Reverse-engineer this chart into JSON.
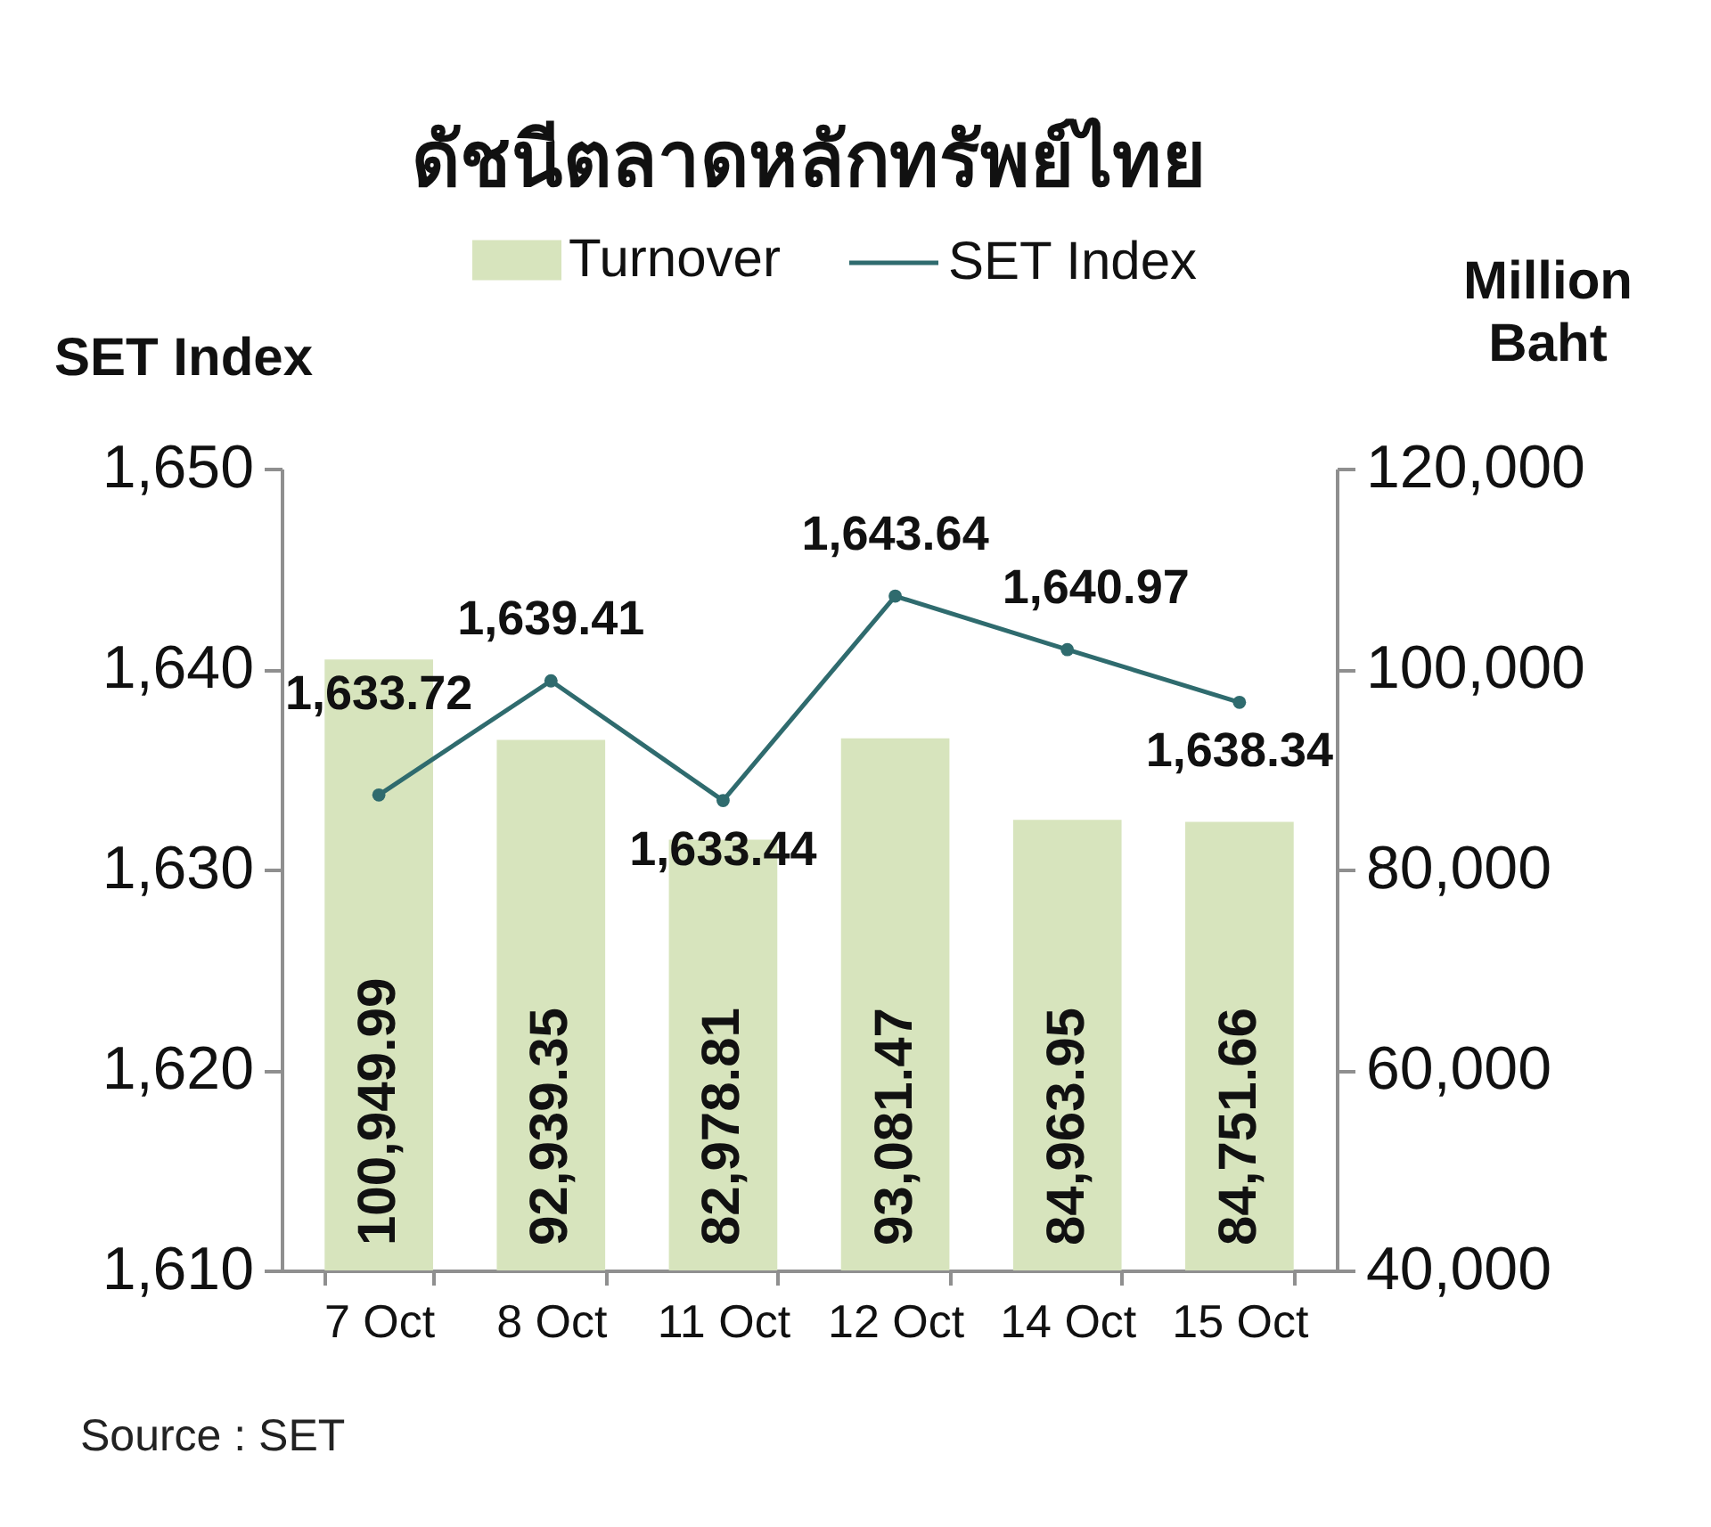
{
  "chart_data": {
    "type": "bar",
    "title": "ดัชนีตลาดหลักทรัพย์ไทย",
    "categories": [
      "7 Oct",
      "8 Oct",
      "11 Oct",
      "12 Oct",
      "14 Oct",
      "15 Oct"
    ],
    "series": [
      {
        "name": "Turnover",
        "axis": "y2",
        "color": "#d7e4bd",
        "values": [
          100949.99,
          92939.35,
          82978.81,
          93081.47,
          84963.95,
          84751.66
        ],
        "value_labels": [
          "100,949.99",
          "92,939.35",
          "82,978.81",
          "93,081.47",
          "84,963.95",
          "84,751.66"
        ]
      },
      {
        "name": "SET Index",
        "type": "line",
        "axis": "y",
        "color": "#2f6b6e",
        "values": [
          1633.72,
          1639.41,
          1633.44,
          1643.64,
          1640.97,
          1638.34
        ],
        "value_labels": [
          "1,633.72",
          "1,639.41",
          "1,633.44",
          "1,643.64",
          "1,640.97",
          "1,638.34"
        ]
      }
    ],
    "ylabel": "SET Index",
    "y2label": "Million Baht",
    "ylim": [
      1610,
      1650
    ],
    "yticks": [
      {
        "value": 1610,
        "label": "1,610"
      },
      {
        "value": 1620,
        "label": "1,620"
      },
      {
        "value": 1630,
        "label": "1,630"
      },
      {
        "value": 1640,
        "label": "1,640"
      },
      {
        "value": 1650,
        "label": "1,650"
      }
    ],
    "y2lim": [
      40000,
      120000
    ],
    "y2ticks": [
      {
        "value": 40000,
        "label": "40,000"
      },
      {
        "value": 60000,
        "label": "60,000"
      },
      {
        "value": 80000,
        "label": "80,000"
      },
      {
        "value": 100000,
        "label": "100,000"
      },
      {
        "value": 120000,
        "label": "120,000"
      }
    ],
    "marker": "circle",
    "legend": "top",
    "grid": false,
    "annotations": [
      "Source : SET"
    ]
  }
}
